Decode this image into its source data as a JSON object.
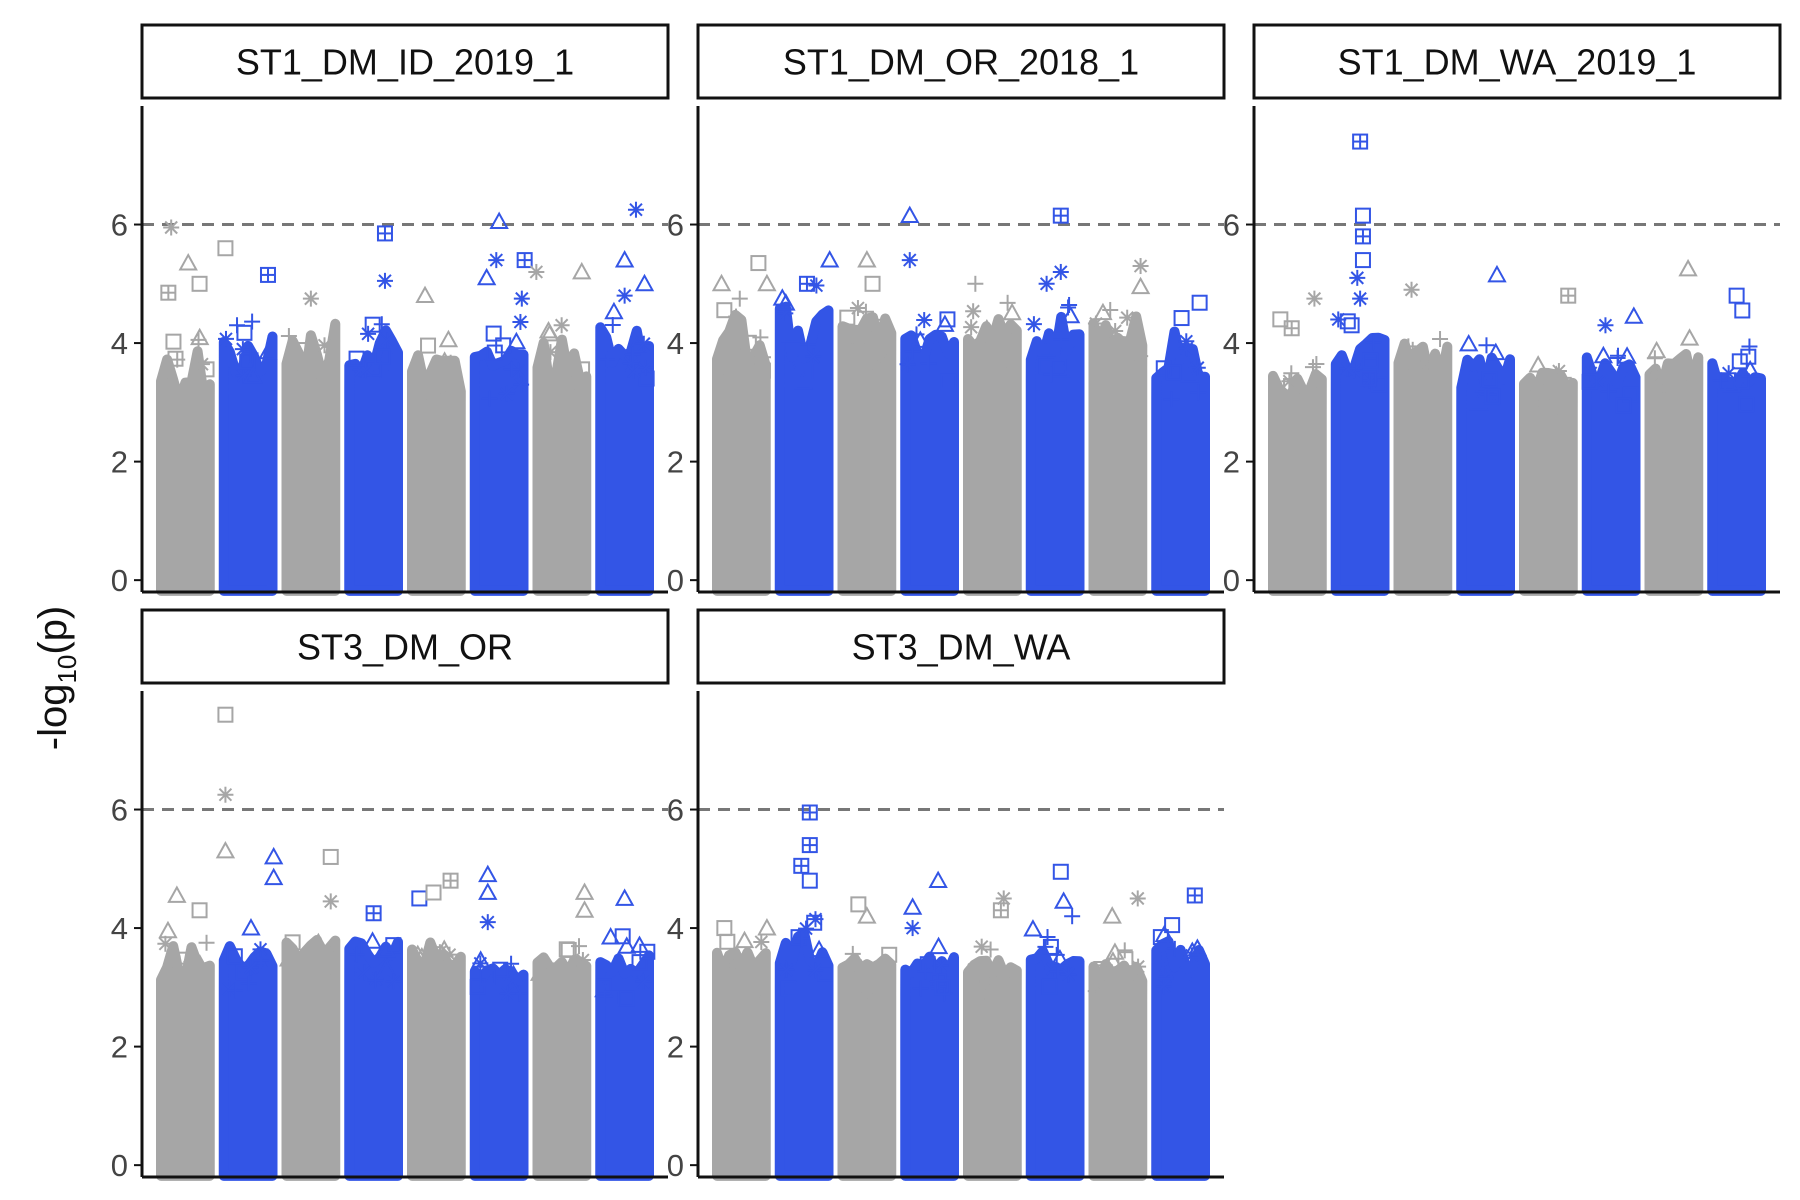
{
  "figure": {
    "ylabel_main": "-log",
    "ylabel_sub": "10",
    "ylabel_tail": "(p)"
  },
  "colors": {
    "odd_chrom": "#a6a6a6",
    "even_chrom": "#3355e6",
    "threshold": "#777777"
  },
  "chart_data": [
    {
      "type": "scatter",
      "title": "ST1_DM_ID_2019_1",
      "ylim": [
        -0.2,
        8
      ],
      "yticks": [
        0,
        2,
        4,
        6
      ],
      "threshold": 6,
      "grid": false,
      "chromosomes": [
        {
          "color": "gray",
          "body_top": 3.0,
          "fill_top": 4.3
        },
        {
          "color": "blue",
          "body_top": 3.4,
          "fill_top": 4.4
        },
        {
          "color": "gray",
          "body_top": 3.3,
          "fill_top": 4.6
        },
        {
          "color": "blue",
          "body_top": 3.5,
          "fill_top": 4.4
        },
        {
          "color": "gray",
          "body_top": 3.0,
          "fill_top": 4.0
        },
        {
          "color": "blue",
          "body_top": 3.4,
          "fill_top": 4.3
        },
        {
          "color": "gray",
          "body_top": 3.2,
          "fill_top": 4.3
        },
        {
          "color": "blue",
          "body_top": 3.5,
          "fill_top": 4.5
        }
      ],
      "peaks": [
        {
          "chr": 0,
          "pos": 0.25,
          "y": 5.95,
          "c": "gray",
          "s": "star"
        },
        {
          "chr": 0,
          "pos": 0.55,
          "y": 5.35,
          "c": "gray",
          "s": "tri"
        },
        {
          "chr": 0,
          "pos": 0.2,
          "y": 4.85,
          "c": "gray",
          "s": "sqplus"
        },
        {
          "chr": 0,
          "pos": 0.75,
          "y": 5.0,
          "c": "gray",
          "s": "sq"
        },
        {
          "chr": 1,
          "pos": 0.1,
          "y": 5.6,
          "c": "gray",
          "s": "sq"
        },
        {
          "chr": 1,
          "pos": 0.85,
          "y": 5.15,
          "c": "blue",
          "s": "sqplus"
        },
        {
          "chr": 2,
          "pos": 0.5,
          "y": 4.75,
          "c": "gray",
          "s": "star"
        },
        {
          "chr": 3,
          "pos": 0.7,
          "y": 5.85,
          "c": "blue",
          "s": "sqplus"
        },
        {
          "chr": 3,
          "pos": 0.7,
          "y": 5.05,
          "c": "blue",
          "s": "star"
        },
        {
          "chr": 4,
          "pos": 0.3,
          "y": 4.8,
          "c": "gray",
          "s": "tri"
        },
        {
          "chr": 5,
          "pos": 0.28,
          "y": 5.1,
          "c": "blue",
          "s": "tri"
        },
        {
          "chr": 5,
          "pos": 0.45,
          "y": 5.4,
          "c": "blue",
          "s": "star"
        },
        {
          "chr": 5,
          "pos": 0.5,
          "y": 6.05,
          "c": "blue",
          "s": "tri"
        },
        {
          "chr": 5,
          "pos": 0.95,
          "y": 5.4,
          "c": "blue",
          "s": "sqplus"
        },
        {
          "chr": 5,
          "pos": 0.9,
          "y": 4.75,
          "c": "blue",
          "s": "star"
        },
        {
          "chr": 6,
          "pos": 0.05,
          "y": 5.2,
          "c": "gray",
          "s": "star"
        },
        {
          "chr": 6,
          "pos": 0.85,
          "y": 5.2,
          "c": "gray",
          "s": "tri"
        },
        {
          "chr": 7,
          "pos": 0.7,
          "y": 6.25,
          "c": "blue",
          "s": "star"
        },
        {
          "chr": 7,
          "pos": 0.5,
          "y": 5.4,
          "c": "blue",
          "s": "tri"
        },
        {
          "chr": 7,
          "pos": 0.5,
          "y": 4.8,
          "c": "blue",
          "s": "star"
        },
        {
          "chr": 7,
          "pos": 0.85,
          "y": 5.0,
          "c": "blue",
          "s": "tri"
        }
      ]
    },
    {
      "type": "scatter",
      "title": "ST1_DM_OR_2018_1",
      "ylim": [
        -0.2,
        8
      ],
      "yticks": [
        0,
        2,
        4,
        6
      ],
      "threshold": 6,
      "grid": false,
      "chromosomes": [
        {
          "color": "gray",
          "body_top": 3.6,
          "fill_top": 4.7
        },
        {
          "color": "blue",
          "body_top": 3.6,
          "fill_top": 4.9
        },
        {
          "color": "gray",
          "body_top": 3.9,
          "fill_top": 4.6
        },
        {
          "color": "blue",
          "body_top": 3.7,
          "fill_top": 4.6
        },
        {
          "color": "gray",
          "body_top": 3.9,
          "fill_top": 4.6
        },
        {
          "color": "blue",
          "body_top": 3.7,
          "fill_top": 4.7
        },
        {
          "color": "gray",
          "body_top": 3.9,
          "fill_top": 4.6
        },
        {
          "color": "blue",
          "body_top": 3.4,
          "fill_top": 4.6
        }
      ],
      "peaks": [
        {
          "chr": 0,
          "pos": 0.15,
          "y": 5.0,
          "c": "gray",
          "s": "tri"
        },
        {
          "chr": 0,
          "pos": 0.8,
          "y": 5.35,
          "c": "gray",
          "s": "sq"
        },
        {
          "chr": 0,
          "pos": 0.95,
          "y": 5.0,
          "c": "gray",
          "s": "tri"
        },
        {
          "chr": 1,
          "pos": 0.55,
          "y": 5.0,
          "c": "blue",
          "s": "sqplus"
        },
        {
          "chr": 1,
          "pos": 0.95,
          "y": 5.4,
          "c": "blue",
          "s": "tri"
        },
        {
          "chr": 2,
          "pos": 0.5,
          "y": 5.4,
          "c": "gray",
          "s": "tri"
        },
        {
          "chr": 2,
          "pos": 0.6,
          "y": 5.0,
          "c": "gray",
          "s": "sq"
        },
        {
          "chr": 3,
          "pos": 0.15,
          "y": 6.15,
          "c": "blue",
          "s": "tri"
        },
        {
          "chr": 3,
          "pos": 0.15,
          "y": 5.4,
          "c": "blue",
          "s": "star"
        },
        {
          "chr": 4,
          "pos": 0.2,
          "y": 5.0,
          "c": "gray",
          "s": "plus"
        },
        {
          "chr": 5,
          "pos": 0.6,
          "y": 6.15,
          "c": "blue",
          "s": "sqplus"
        },
        {
          "chr": 5,
          "pos": 0.35,
          "y": 5.0,
          "c": "blue",
          "s": "star"
        },
        {
          "chr": 5,
          "pos": 0.6,
          "y": 5.2,
          "c": "blue",
          "s": "star"
        },
        {
          "chr": 6,
          "pos": 0.9,
          "y": 5.3,
          "c": "gray",
          "s": "star"
        },
        {
          "chr": 6,
          "pos": 0.9,
          "y": 4.95,
          "c": "gray",
          "s": "tri"
        }
      ]
    },
    {
      "type": "scatter",
      "title": "ST1_DM_WA_2019_1",
      "ylim": [
        -0.2,
        8
      ],
      "yticks": [
        0,
        2,
        4,
        6
      ],
      "threshold": 6,
      "grid": false,
      "chromosomes": [
        {
          "color": "gray",
          "body_top": 3.1,
          "fill_top": 3.6
        },
        {
          "color": "blue",
          "body_top": 3.5,
          "fill_top": 4.3
        },
        {
          "color": "gray",
          "body_top": 3.3,
          "fill_top": 4.2
        },
        {
          "color": "blue",
          "body_top": 3.2,
          "fill_top": 3.9
        },
        {
          "color": "gray",
          "body_top": 3.1,
          "fill_top": 3.6
        },
        {
          "color": "blue",
          "body_top": 3.3,
          "fill_top": 3.9
        },
        {
          "color": "gray",
          "body_top": 3.2,
          "fill_top": 4.0
        },
        {
          "color": "blue",
          "body_top": 3.3,
          "fill_top": 3.9
        }
      ],
      "peaks": [
        {
          "chr": 0,
          "pos": 0.2,
          "y": 4.4,
          "c": "gray",
          "s": "sq"
        },
        {
          "chr": 0,
          "pos": 0.4,
          "y": 4.25,
          "c": "gray",
          "s": "sqplus"
        },
        {
          "chr": 0,
          "pos": 0.8,
          "y": 4.75,
          "c": "gray",
          "s": "star"
        },
        {
          "chr": 1,
          "pos": 0.5,
          "y": 7.4,
          "c": "blue",
          "s": "sqplus"
        },
        {
          "chr": 1,
          "pos": 0.55,
          "y": 6.15,
          "c": "blue",
          "s": "sq"
        },
        {
          "chr": 1,
          "pos": 0.55,
          "y": 5.8,
          "c": "blue",
          "s": "sqplus"
        },
        {
          "chr": 1,
          "pos": 0.55,
          "y": 5.4,
          "c": "blue",
          "s": "sq"
        },
        {
          "chr": 1,
          "pos": 0.45,
          "y": 5.1,
          "c": "blue",
          "s": "star"
        },
        {
          "chr": 1,
          "pos": 0.5,
          "y": 4.75,
          "c": "blue",
          "s": "star"
        },
        {
          "chr": 1,
          "pos": 0.35,
          "y": 4.3,
          "c": "blue",
          "s": "sq"
        },
        {
          "chr": 2,
          "pos": 0.3,
          "y": 4.9,
          "c": "gray",
          "s": "star"
        },
        {
          "chr": 3,
          "pos": 0.7,
          "y": 5.15,
          "c": "blue",
          "s": "tri"
        },
        {
          "chr": 4,
          "pos": 0.85,
          "y": 4.8,
          "c": "gray",
          "s": "sqplus"
        },
        {
          "chr": 5,
          "pos": 0.4,
          "y": 4.3,
          "c": "blue",
          "s": "star"
        },
        {
          "chr": 5,
          "pos": 0.9,
          "y": 4.45,
          "c": "blue",
          "s": "tri"
        },
        {
          "chr": 6,
          "pos": 0.75,
          "y": 5.25,
          "c": "gray",
          "s": "tri"
        },
        {
          "chr": 7,
          "pos": 0.5,
          "y": 4.8,
          "c": "blue",
          "s": "sq"
        },
        {
          "chr": 7,
          "pos": 0.6,
          "y": 4.55,
          "c": "blue",
          "s": "sq"
        }
      ]
    },
    {
      "type": "scatter",
      "title": "ST3_DM_OR",
      "ylim": [
        -0.2,
        8
      ],
      "yticks": [
        0,
        2,
        4,
        6
      ],
      "threshold": 6,
      "grid": false,
      "chromosomes": [
        {
          "color": "gray",
          "body_top": 3.1,
          "fill_top": 3.9
        },
        {
          "color": "blue",
          "body_top": 3.3,
          "fill_top": 3.8
        },
        {
          "color": "gray",
          "body_top": 3.4,
          "fill_top": 3.9
        },
        {
          "color": "blue",
          "body_top": 3.4,
          "fill_top": 3.9
        },
        {
          "color": "gray",
          "body_top": 3.3,
          "fill_top": 3.9
        },
        {
          "color": "blue",
          "body_top": 3.1,
          "fill_top": 3.4
        },
        {
          "color": "gray",
          "body_top": 3.2,
          "fill_top": 3.6
        },
        {
          "color": "blue",
          "body_top": 3.1,
          "fill_top": 3.8
        }
      ],
      "peaks": [
        {
          "chr": 0,
          "pos": 0.35,
          "y": 4.55,
          "c": "gray",
          "s": "tri"
        },
        {
          "chr": 0,
          "pos": 0.75,
          "y": 4.3,
          "c": "gray",
          "s": "sq"
        },
        {
          "chr": 1,
          "pos": 0.1,
          "y": 7.6,
          "c": "gray",
          "s": "sq"
        },
        {
          "chr": 1,
          "pos": 0.1,
          "y": 6.25,
          "c": "gray",
          "s": "star"
        },
        {
          "chr": 1,
          "pos": 0.1,
          "y": 5.3,
          "c": "gray",
          "s": "tri"
        },
        {
          "chr": 1,
          "pos": 0.55,
          "y": 4.0,
          "c": "blue",
          "s": "tri"
        },
        {
          "chr": 1,
          "pos": 0.95,
          "y": 5.2,
          "c": "blue",
          "s": "tri"
        },
        {
          "chr": 1,
          "pos": 0.95,
          "y": 4.85,
          "c": "blue",
          "s": "tri"
        },
        {
          "chr": 2,
          "pos": 0.85,
          "y": 5.2,
          "c": "gray",
          "s": "sq"
        },
        {
          "chr": 2,
          "pos": 0.85,
          "y": 4.45,
          "c": "gray",
          "s": "star"
        },
        {
          "chr": 3,
          "pos": 0.5,
          "y": 4.25,
          "c": "blue",
          "s": "sqplus"
        },
        {
          "chr": 4,
          "pos": 0.2,
          "y": 4.5,
          "c": "blue",
          "s": "sq"
        },
        {
          "chr": 4,
          "pos": 0.45,
          "y": 4.6,
          "c": "gray",
          "s": "sq"
        },
        {
          "chr": 4,
          "pos": 0.75,
          "y": 4.8,
          "c": "gray",
          "s": "sqplus"
        },
        {
          "chr": 5,
          "pos": 0.3,
          "y": 4.9,
          "c": "blue",
          "s": "tri"
        },
        {
          "chr": 5,
          "pos": 0.3,
          "y": 4.6,
          "c": "blue",
          "s": "tri"
        },
        {
          "chr": 5,
          "pos": 0.3,
          "y": 4.1,
          "c": "blue",
          "s": "star"
        },
        {
          "chr": 6,
          "pos": 0.9,
          "y": 4.6,
          "c": "gray",
          "s": "tri"
        },
        {
          "chr": 6,
          "pos": 0.9,
          "y": 4.3,
          "c": "gray",
          "s": "tri"
        },
        {
          "chr": 7,
          "pos": 0.5,
          "y": 4.5,
          "c": "blue",
          "s": "tri"
        },
        {
          "chr": 7,
          "pos": 0.9,
          "y": 3.6,
          "c": "blue",
          "s": "sq"
        }
      ]
    },
    {
      "type": "scatter",
      "title": "ST3_DM_WA",
      "ylim": [
        -0.2,
        8
      ],
      "yticks": [
        0,
        2,
        4,
        6
      ],
      "threshold": 6,
      "grid": false,
      "chromosomes": [
        {
          "color": "gray",
          "body_top": 3.2,
          "fill_top": 3.7
        },
        {
          "color": "blue",
          "body_top": 3.3,
          "fill_top": 4.1
        },
        {
          "color": "gray",
          "body_top": 3.2,
          "fill_top": 3.6
        },
        {
          "color": "blue",
          "body_top": 3.2,
          "fill_top": 3.6
        },
        {
          "color": "gray",
          "body_top": 3.2,
          "fill_top": 3.6
        },
        {
          "color": "blue",
          "body_top": 3.3,
          "fill_top": 3.9
        },
        {
          "color": "gray",
          "body_top": 3.1,
          "fill_top": 3.6
        },
        {
          "color": "blue",
          "body_top": 3.3,
          "fill_top": 3.9
        }
      ],
      "peaks": [
        {
          "chr": 0,
          "pos": 0.2,
          "y": 4.0,
          "c": "gray",
          "s": "sq"
        },
        {
          "chr": 0,
          "pos": 0.95,
          "y": 4.0,
          "c": "gray",
          "s": "tri"
        },
        {
          "chr": 1,
          "pos": 0.6,
          "y": 5.95,
          "c": "blue",
          "s": "sqplus"
        },
        {
          "chr": 1,
          "pos": 0.6,
          "y": 5.4,
          "c": "blue",
          "s": "sqplus"
        },
        {
          "chr": 1,
          "pos": 0.45,
          "y": 5.05,
          "c": "blue",
          "s": "sqplus"
        },
        {
          "chr": 1,
          "pos": 0.6,
          "y": 4.8,
          "c": "blue",
          "s": "sq"
        },
        {
          "chr": 1,
          "pos": 0.7,
          "y": 4.15,
          "c": "blue",
          "s": "star"
        },
        {
          "chr": 2,
          "pos": 0.35,
          "y": 4.4,
          "c": "gray",
          "s": "sq"
        },
        {
          "chr": 2,
          "pos": 0.5,
          "y": 4.2,
          "c": "gray",
          "s": "tri"
        },
        {
          "chr": 3,
          "pos": 0.2,
          "y": 4.35,
          "c": "blue",
          "s": "tri"
        },
        {
          "chr": 3,
          "pos": 0.2,
          "y": 4.0,
          "c": "blue",
          "s": "star"
        },
        {
          "chr": 3,
          "pos": 0.65,
          "y": 4.8,
          "c": "blue",
          "s": "tri"
        },
        {
          "chr": 4,
          "pos": 0.7,
          "y": 4.5,
          "c": "gray",
          "s": "star"
        },
        {
          "chr": 4,
          "pos": 0.65,
          "y": 4.3,
          "c": "gray",
          "s": "sqplus"
        },
        {
          "chr": 5,
          "pos": 0.6,
          "y": 4.95,
          "c": "blue",
          "s": "sq"
        },
        {
          "chr": 5,
          "pos": 0.65,
          "y": 4.45,
          "c": "blue",
          "s": "tri"
        },
        {
          "chr": 5,
          "pos": 0.8,
          "y": 4.2,
          "c": "blue",
          "s": "plus"
        },
        {
          "chr": 6,
          "pos": 0.85,
          "y": 4.5,
          "c": "gray",
          "s": "star"
        },
        {
          "chr": 6,
          "pos": 0.4,
          "y": 4.2,
          "c": "gray",
          "s": "tri"
        },
        {
          "chr": 7,
          "pos": 0.75,
          "y": 4.55,
          "c": "blue",
          "s": "sqplus"
        },
        {
          "chr": 7,
          "pos": 0.35,
          "y": 4.05,
          "c": "blue",
          "s": "sq"
        }
      ]
    }
  ]
}
